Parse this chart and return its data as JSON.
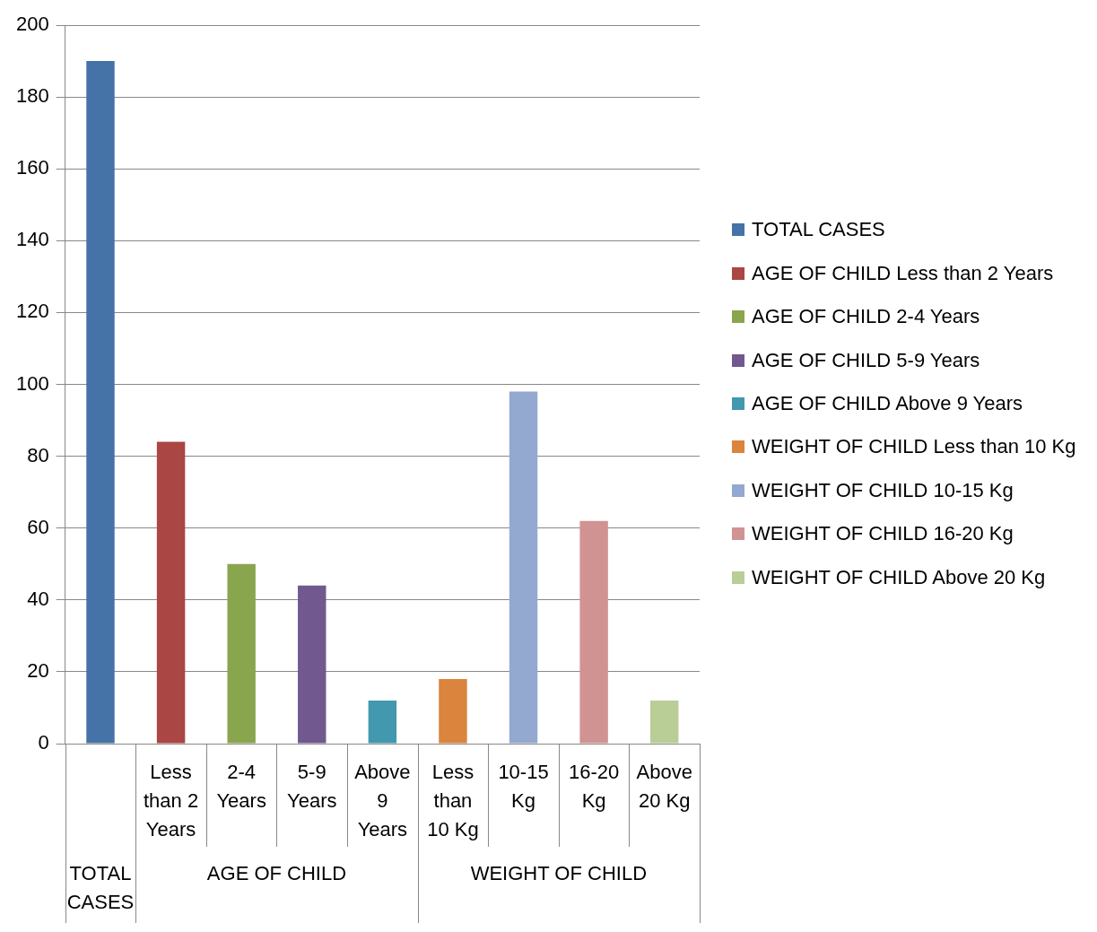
{
  "chart_data": {
    "type": "bar",
    "categories": [
      null,
      "Less than 2 Years",
      "2-4 Years",
      "5-9 Years",
      "Above 9 Years",
      "Less than 10 Kg",
      "10-15 Kg",
      "16-20 Kg",
      "Above 20 Kg"
    ],
    "series": [
      {
        "name": "TOTAL CASES",
        "color": "#4572a7",
        "values": [
          190,
          null,
          null,
          null,
          null,
          null,
          null,
          null,
          null
        ]
      },
      {
        "name": "AGE OF CHILD Less than 2 Years",
        "color": "#aa4643",
        "values": [
          null,
          84,
          null,
          null,
          null,
          null,
          null,
          null,
          null
        ]
      },
      {
        "name": "AGE OF CHILD 2-4 Years",
        "color": "#89a54e",
        "values": [
          null,
          null,
          50,
          null,
          null,
          null,
          null,
          null,
          null
        ]
      },
      {
        "name": "AGE OF CHILD 5-9 Years",
        "color": "#71588f",
        "values": [
          null,
          null,
          null,
          44,
          null,
          null,
          null,
          null,
          null
        ]
      },
      {
        "name": "AGE OF CHILD Above 9 Years",
        "color": "#4198af",
        "values": [
          null,
          null,
          null,
          null,
          12,
          null,
          null,
          null,
          null
        ]
      },
      {
        "name": "WEIGHT OF CHILD Less than 10 Kg",
        "color": "#db843d",
        "values": [
          null,
          null,
          null,
          null,
          null,
          18,
          null,
          null,
          null
        ]
      },
      {
        "name": "WEIGHT OF CHILD 10-15 Kg",
        "color": "#93a9cf",
        "values": [
          null,
          null,
          null,
          null,
          null,
          null,
          98,
          null,
          null
        ]
      },
      {
        "name": "WEIGHT OF CHILD 16-20 Kg",
        "color": "#d19392",
        "values": [
          null,
          null,
          null,
          null,
          null,
          null,
          null,
          62,
          null
        ]
      },
      {
        "name": "WEIGHT OF CHILD Above 20 Kg",
        "color": "#b9cd96",
        "values": [
          null,
          null,
          null,
          null,
          null,
          null,
          null,
          null,
          12
        ]
      }
    ],
    "annotations": [
      "TOTAL CASES",
      "AGE OF CHILD",
      "WEIGHT OF CHILD"
    ],
    "ylim": [
      0,
      200
    ],
    "yticks": [
      0,
      20,
      40,
      60,
      80,
      100,
      120,
      140,
      160,
      180,
      200
    ],
    "grid": "y",
    "legend": "right"
  }
}
